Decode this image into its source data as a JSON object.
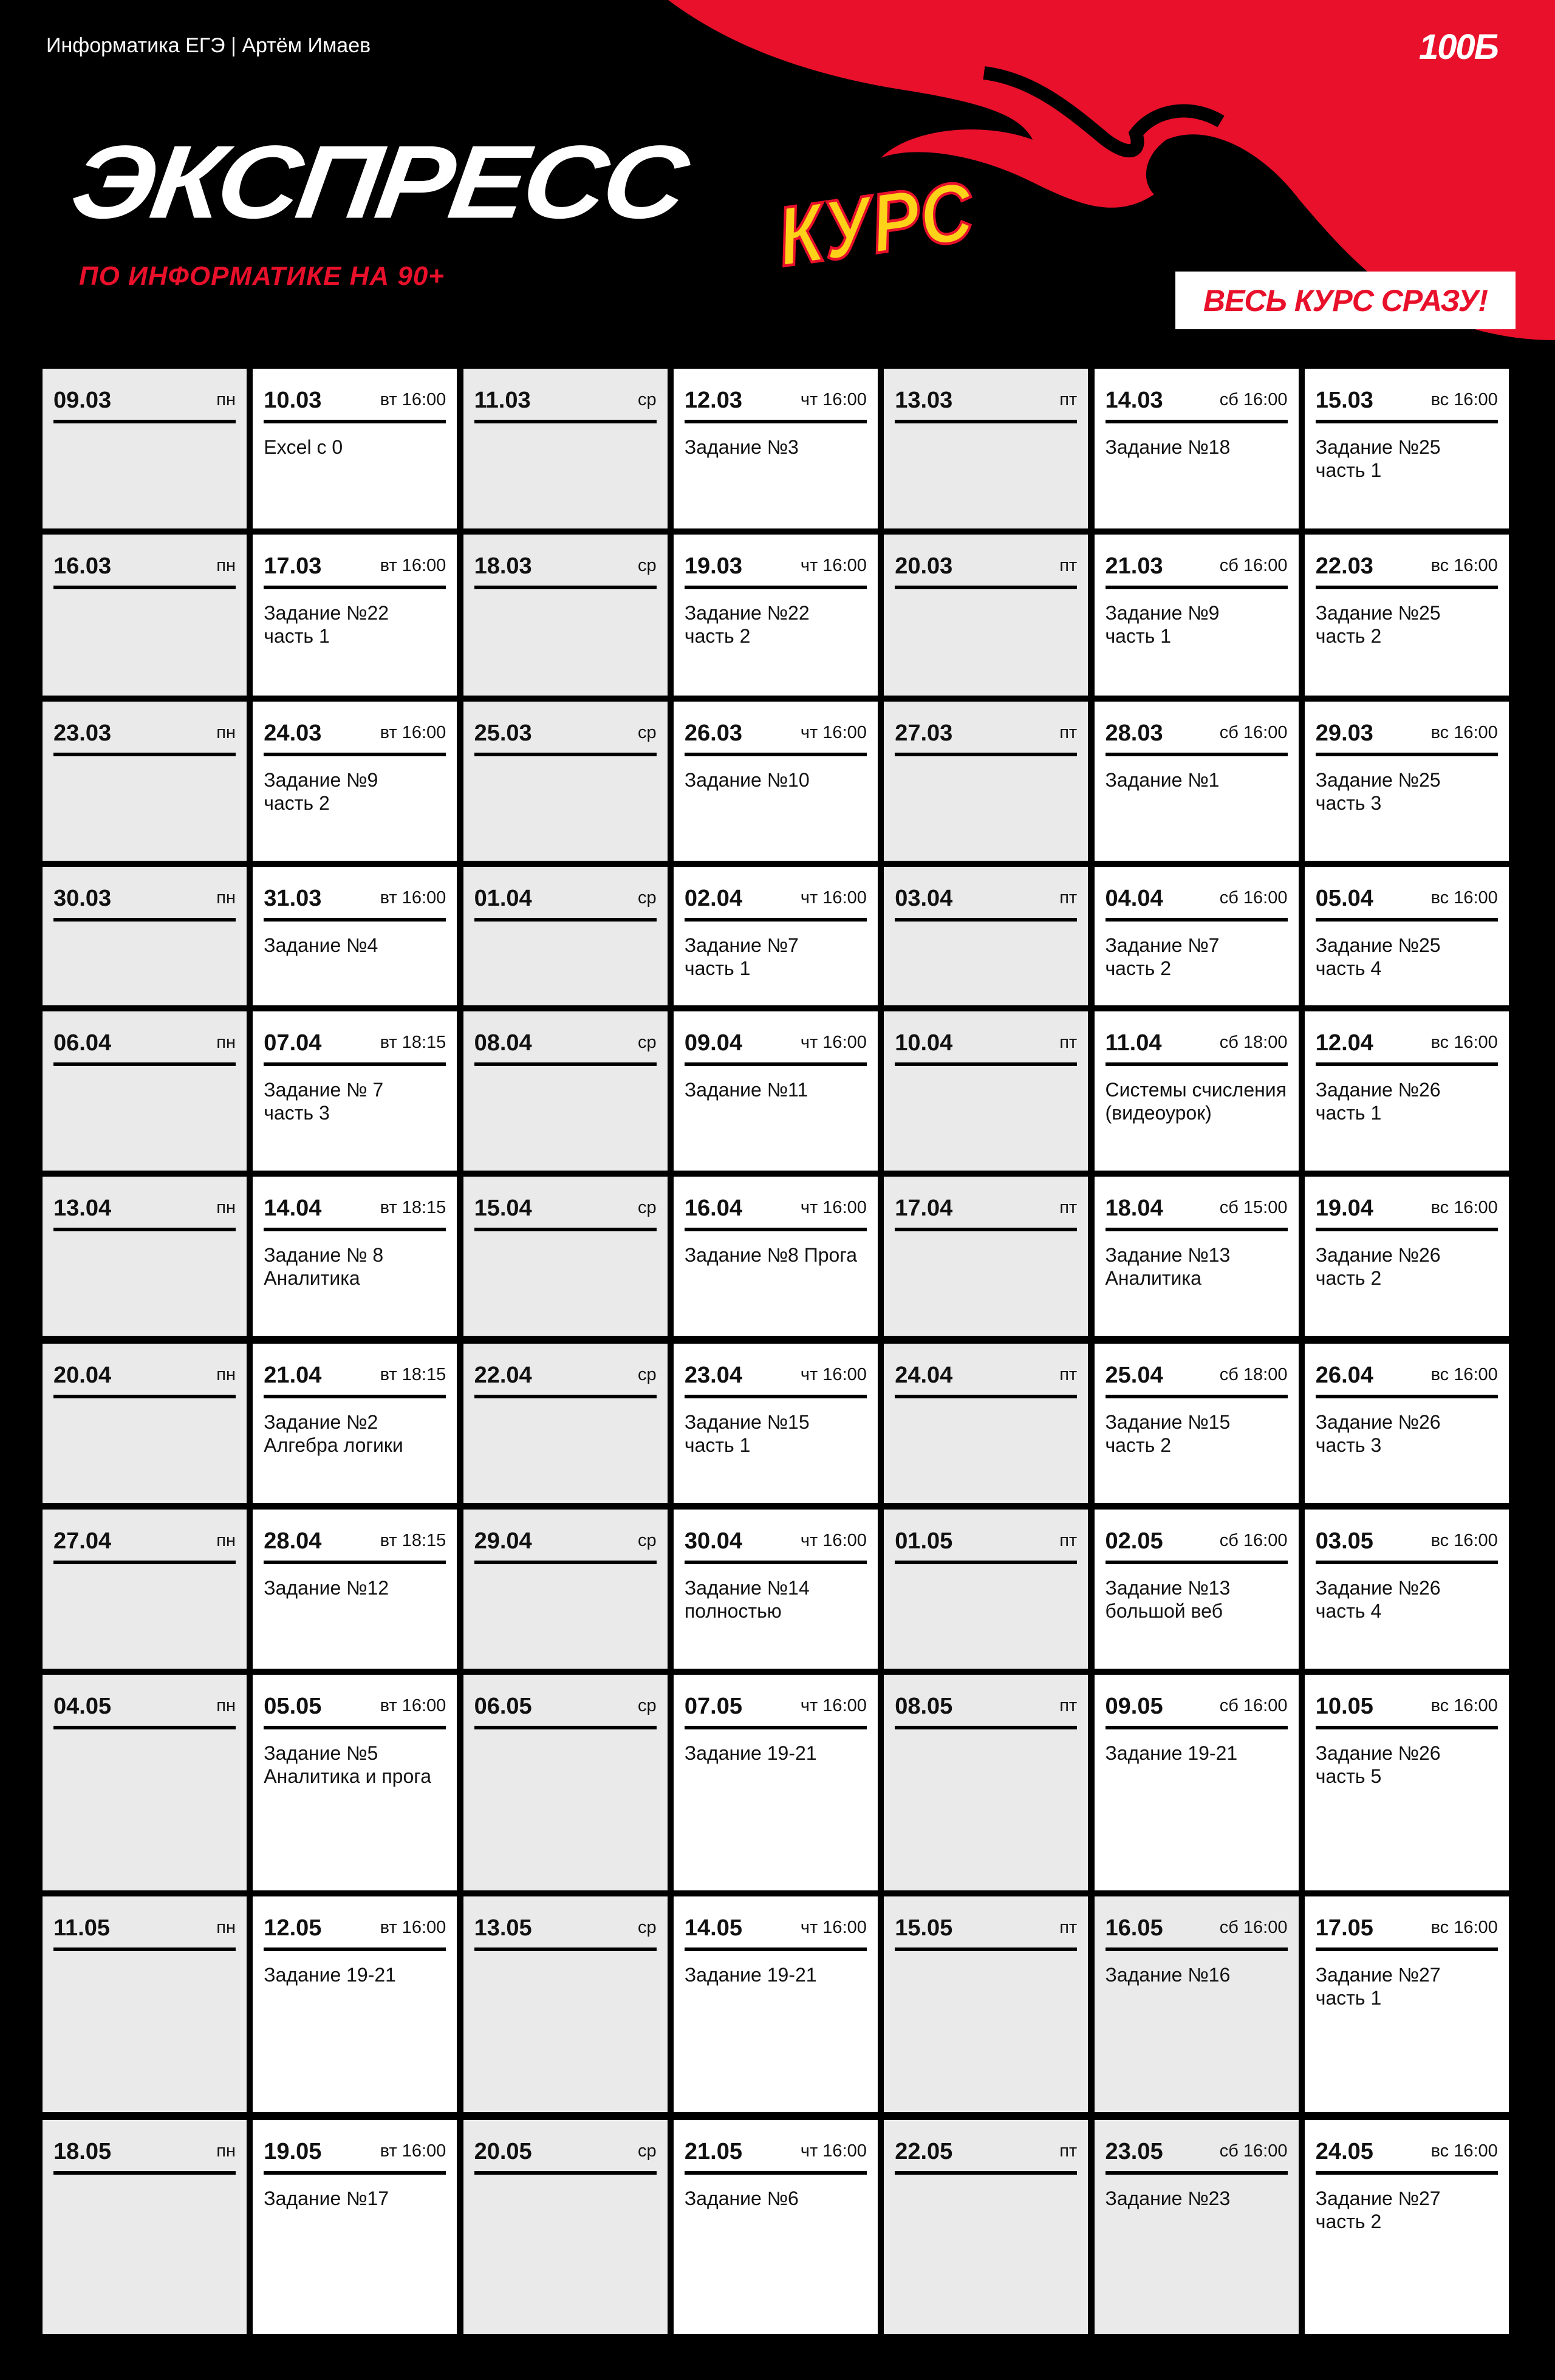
{
  "header": {
    "author_line": "Информатика ЕГЭ | Артём Имаев",
    "brand": "100Б",
    "logo_main": "ЭКСПРЕСС",
    "logo_accent": "КУРС",
    "logo_subtitle": "ПО ИНФОРМАТИКЕ НА 90+",
    "cta_button": "ВЕСЬ КУРС СРАЗУ!"
  },
  "colors": {
    "accent_red": "#e8102a",
    "accent_yellow": "#ffd21a",
    "background": "#000000",
    "inactive_cell": "#ebeaeb",
    "active_cell": "#ffffff"
  },
  "weeks": [
    {
      "days": [
        {
          "date": "09.03",
          "day": "пн",
          "topic": ""
        },
        {
          "date": "10.03",
          "day": "вт 16:00",
          "topic": "Excel с 0"
        },
        {
          "date": "11.03",
          "day": "ср",
          "topic": ""
        },
        {
          "date": "12.03",
          "day": "чт 16:00",
          "topic": "Задание №3"
        },
        {
          "date": "13.03",
          "day": "пт",
          "topic": ""
        },
        {
          "date": "14.03",
          "day": "сб 16:00",
          "topic": "Задание №18"
        },
        {
          "date": "15.03",
          "day": "вс 16:00",
          "topic": "Задание №25\nчасть 1"
        }
      ]
    },
    {
      "days": [
        {
          "date": "16.03",
          "day": "пн",
          "topic": ""
        },
        {
          "date": "17.03",
          "day": "вт 16:00",
          "topic": "Задание №22\nчасть 1"
        },
        {
          "date": "18.03",
          "day": "ср",
          "topic": ""
        },
        {
          "date": "19.03",
          "day": "чт 16:00",
          "topic": "Задание №22\nчасть 2"
        },
        {
          "date": "20.03",
          "day": "пт",
          "topic": ""
        },
        {
          "date": "21.03",
          "day": "сб 16:00",
          "topic": "Задание №9\nчасть 1"
        },
        {
          "date": "22.03",
          "day": "вс 16:00",
          "topic": "Задание №25\nчасть 2"
        }
      ]
    },
    {
      "days": [
        {
          "date": "23.03",
          "day": "пн",
          "topic": ""
        },
        {
          "date": "24.03",
          "day": "вт 16:00",
          "topic": "Задание №9\nчасть 2"
        },
        {
          "date": "25.03",
          "day": "ср",
          "topic": ""
        },
        {
          "date": "26.03",
          "day": "чт 16:00",
          "topic": "Задание №10"
        },
        {
          "date": "27.03",
          "day": "пт",
          "topic": ""
        },
        {
          "date": "28.03",
          "day": "сб 16:00",
          "topic": "Задание №1"
        },
        {
          "date": "29.03",
          "day": "вс 16:00",
          "topic": "Задание №25\nчасть 3"
        }
      ]
    },
    {
      "days": [
        {
          "date": "30.03",
          "day": "пн",
          "topic": ""
        },
        {
          "date": "31.03",
          "day": "вт 16:00",
          "topic": "Задание №4"
        },
        {
          "date": "01.04",
          "day": "ср",
          "topic": ""
        },
        {
          "date": "02.04",
          "day": "чт 16:00",
          "topic": "Задание №7\nчасть 1"
        },
        {
          "date": "03.04",
          "day": "пт",
          "topic": ""
        },
        {
          "date": "04.04",
          "day": "сб 16:00",
          "topic": "Задание №7\nчасть 2"
        },
        {
          "date": "05.04",
          "day": "вс 16:00",
          "topic": "Задание №25\nчасть 4"
        }
      ]
    },
    {
      "days": [
        {
          "date": "06.04",
          "day": "пн",
          "topic": ""
        },
        {
          "date": "07.04",
          "day": "вт 18:15",
          "topic": "Задание № 7\nчасть 3"
        },
        {
          "date": "08.04",
          "day": "ср",
          "topic": ""
        },
        {
          "date": "09.04",
          "day": "чт 16:00",
          "topic": "Задание №11"
        },
        {
          "date": "10.04",
          "day": "пт",
          "topic": ""
        },
        {
          "date": "11.04",
          "day": "сб 18:00",
          "topic": "Системы счисления\n(видеоурок)"
        },
        {
          "date": "12.04",
          "day": "вс 16:00",
          "topic": "Задание №26\nчасть 1"
        }
      ]
    },
    {
      "days": [
        {
          "date": "13.04",
          "day": "пн",
          "topic": ""
        },
        {
          "date": "14.04",
          "day": "вт 18:15",
          "topic": "Задание № 8\nАналитика"
        },
        {
          "date": "15.04",
          "day": "ср",
          "topic": ""
        },
        {
          "date": "16.04",
          "day": "чт 16:00",
          "topic": "Задание №8 Прога"
        },
        {
          "date": "17.04",
          "day": "пт",
          "topic": ""
        },
        {
          "date": "18.04",
          "day": "сб 15:00",
          "topic": "Задание №13\nАналитика"
        },
        {
          "date": "19.04",
          "day": "вс 16:00",
          "topic": "Задание №26\nчасть 2"
        }
      ]
    },
    {
      "days": [
        {
          "date": "20.04",
          "day": "пн",
          "topic": ""
        },
        {
          "date": "21.04",
          "day": "вт 18:15",
          "topic": "Задание №2\nАлгебра логики"
        },
        {
          "date": "22.04",
          "day": "ср",
          "topic": ""
        },
        {
          "date": "23.04",
          "day": "чт 16:00",
          "topic": "Задание №15\nчасть 1"
        },
        {
          "date": "24.04",
          "day": "пт",
          "topic": ""
        },
        {
          "date": "25.04",
          "day": "сб 18:00",
          "topic": "Задание №15\nчасть 2"
        },
        {
          "date": "26.04",
          "day": "вс 16:00",
          "topic": "Задание №26\nчасть 3"
        }
      ]
    },
    {
      "days": [
        {
          "date": "27.04",
          "day": "пн",
          "topic": ""
        },
        {
          "date": "28.04",
          "day": "вт 18:15",
          "topic": "Задание №12"
        },
        {
          "date": "29.04",
          "day": "ср",
          "topic": ""
        },
        {
          "date": "30.04",
          "day": "чт 16:00",
          "topic": "Задание №14\nполностью"
        },
        {
          "date": "01.05",
          "day": "пт",
          "topic": ""
        },
        {
          "date": "02.05",
          "day": "сб 16:00",
          "topic": "Задание №13\nбольшой веб"
        },
        {
          "date": "03.05",
          "day": "вс 16:00",
          "topic": "Задание №26\nчасть 4"
        }
      ]
    },
    {
      "days": [
        {
          "date": "04.05",
          "day": "пн",
          "topic": ""
        },
        {
          "date": "05.05",
          "day": "вт 16:00",
          "topic": "Задание №5\nАналитика и прога"
        },
        {
          "date": "06.05",
          "day": "ср",
          "topic": ""
        },
        {
          "date": "07.05",
          "day": "чт 16:00",
          "topic": "Задание 19-21"
        },
        {
          "date": "08.05",
          "day": "пт",
          "topic": ""
        },
        {
          "date": "09.05",
          "day": "сб 16:00",
          "topic": "Задание 19-21"
        },
        {
          "date": "10.05",
          "day": "вс 16:00",
          "topic": "Задание №26\nчасть 5"
        }
      ]
    },
    {
      "days": [
        {
          "date": "11.05",
          "day": "пн",
          "topic": ""
        },
        {
          "date": "12.05",
          "day": "вт 16:00",
          "topic": "Задание 19-21"
        },
        {
          "date": "13.05",
          "day": "ср",
          "topic": ""
        },
        {
          "date": "14.05",
          "day": "чт 16:00",
          "topic": "Задание 19-21"
        },
        {
          "date": "15.05",
          "day": "пт",
          "topic": ""
        },
        {
          "date": "16.05",
          "day": "сб 16:00",
          "topic": "Задание №16",
          "inactive": true
        },
        {
          "date": "17.05",
          "day": "вс 16:00",
          "topic": "Задание №27\nчасть 1"
        }
      ]
    },
    {
      "days": [
        {
          "date": "18.05",
          "day": "пн",
          "topic": ""
        },
        {
          "date": "19.05",
          "day": "вт 16:00",
          "topic": "Задание №17"
        },
        {
          "date": "20.05",
          "day": "ср",
          "topic": ""
        },
        {
          "date": "21.05",
          "day": "чт 16:00",
          "topic": "Задание №6"
        },
        {
          "date": "22.05",
          "day": "пт",
          "topic": ""
        },
        {
          "date": "23.05",
          "day": "сб 16:00",
          "topic": "Задание №23",
          "inactive": true
        },
        {
          "date": "24.05",
          "day": "вс 16:00",
          "topic": "Задание №27\nчасть 2"
        }
      ]
    }
  ]
}
